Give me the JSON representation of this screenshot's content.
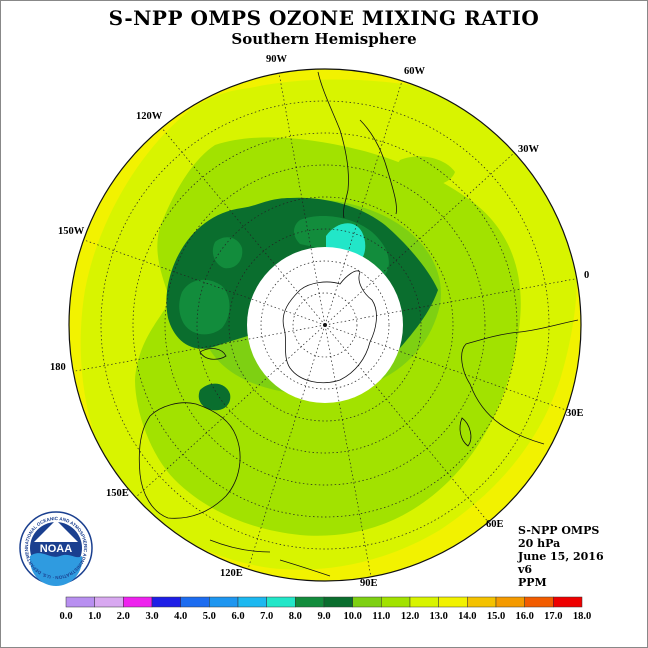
{
  "title": "S-NPP OMPS OZONE MIXING RATIO",
  "subtitle": "Southern Hemisphere",
  "longitude_labels": [
    "90W",
    "60W",
    "30W",
    "0",
    "30E",
    "60E",
    "90E",
    "120E",
    "150E",
    "180",
    "150W",
    "120W"
  ],
  "info": {
    "instrument": "S-NPP OMPS",
    "level": "20 hPa",
    "date": "June 15, 2016",
    "version": "v6",
    "units": "PPM"
  },
  "colorbar": {
    "labels": [
      "0.0",
      "1.0",
      "2.0",
      "3.0",
      "4.0",
      "5.0",
      "6.0",
      "7.0",
      "8.0",
      "9.0",
      "10.0",
      "11.0",
      "12.0",
      "13.0",
      "14.0",
      "15.0",
      "16.0",
      "17.0",
      "18.0"
    ],
    "colors": [
      "#b88ff0",
      "#d8a8f0",
      "#ee22ee",
      "#1e1ee6",
      "#1c6cf0",
      "#1e96f0",
      "#1cb8f0",
      "#22e6c8",
      "#128c3c",
      "#0a6e2e",
      "#7ed012",
      "#a2e200",
      "#d8f400",
      "#f2f200",
      "#f4c200",
      "#f49a00",
      "#f25c00",
      "#ee0000",
      "#7e4e2e"
    ]
  },
  "logo": {
    "text": "NOAA",
    "ring_text": "NATIONAL OCEANIC AND ATMOSPHERIC ADMINISTRATION · U.S. DEPARTMENT OF COMMERCE"
  }
}
